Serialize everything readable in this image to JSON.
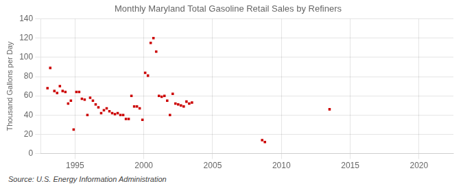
{
  "chart_data": {
    "type": "scatter",
    "title": "Monthly Maryland Total Gasoline Retail Sales by Refiners",
    "ylabel": "Thousand Gallons per Day",
    "annotation": "Source: U.S. Energy Information Administration",
    "xlim": [
      1992.5,
      2022.5
    ],
    "ylim": [
      0,
      140
    ],
    "xticks": [
      1995,
      2000,
      2005,
      2010,
      2015,
      2020
    ],
    "yticks": [
      0,
      20,
      40,
      60,
      80,
      100,
      120,
      140
    ],
    "color": "#cc0000",
    "marker": "square",
    "grid": true,
    "x": [
      1993.0,
      1993.2,
      1993.5,
      1993.7,
      1993.9,
      1994.1,
      1994.3,
      1994.5,
      1994.7,
      1994.9,
      1995.1,
      1995.3,
      1995.5,
      1995.7,
      1995.9,
      1996.1,
      1996.3,
      1996.5,
      1996.7,
      1996.9,
      1997.1,
      1997.3,
      1997.5,
      1997.7,
      1997.9,
      1998.1,
      1998.3,
      1998.5,
      1998.7,
      1998.9,
      1999.1,
      1999.3,
      1999.5,
      1999.7,
      1999.9,
      2000.1,
      2000.3,
      2000.5,
      2000.7,
      2000.9,
      2001.1,
      2001.3,
      2001.5,
      2001.7,
      2001.9,
      2002.1,
      2002.3,
      2002.5,
      2002.7,
      2002.9,
      2003.1,
      2003.3,
      2003.5,
      2008.6,
      2008.8,
      2013.5
    ],
    "values": [
      68,
      89,
      65,
      63,
      70,
      65,
      64,
      52,
      55,
      25,
      64,
      64,
      57,
      56,
      40,
      58,
      55,
      51,
      48,
      42,
      45,
      47,
      44,
      42,
      41,
      42,
      40,
      40,
      36,
      36,
      60,
      49,
      49,
      47,
      35,
      84,
      81,
      115,
      120,
      106,
      60,
      59,
      60,
      55,
      40,
      62,
      52,
      51,
      50,
      49,
      54,
      52,
      53,
      14,
      12,
      46
    ]
  }
}
